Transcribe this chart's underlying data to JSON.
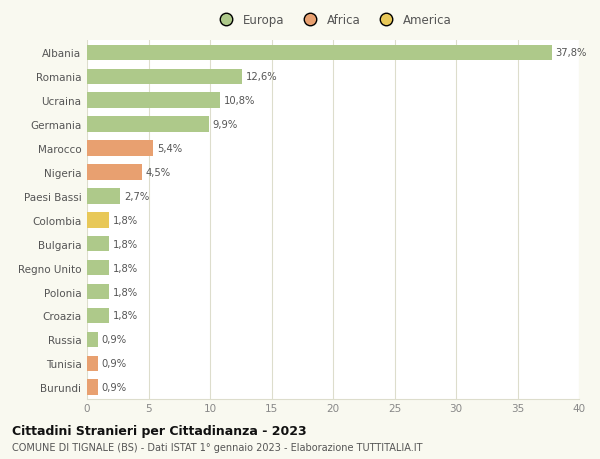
{
  "categories": [
    "Albania",
    "Romania",
    "Ucraina",
    "Germania",
    "Marocco",
    "Nigeria",
    "Paesi Bassi",
    "Colombia",
    "Bulgaria",
    "Regno Unito",
    "Polonia",
    "Croazia",
    "Russia",
    "Tunisia",
    "Burundi"
  ],
  "values": [
    37.8,
    12.6,
    10.8,
    9.9,
    5.4,
    4.5,
    2.7,
    1.8,
    1.8,
    1.8,
    1.8,
    1.8,
    0.9,
    0.9,
    0.9
  ],
  "labels": [
    "37,8%",
    "12,6%",
    "10,8%",
    "9,9%",
    "5,4%",
    "4,5%",
    "2,7%",
    "1,8%",
    "1,8%",
    "1,8%",
    "1,8%",
    "1,8%",
    "0,9%",
    "0,9%",
    "0,9%"
  ],
  "colors": [
    "#aec98a",
    "#aec98a",
    "#aec98a",
    "#aec98a",
    "#e8a070",
    "#e8a070",
    "#aec98a",
    "#e8c858",
    "#aec98a",
    "#aec98a",
    "#aec98a",
    "#aec98a",
    "#aec98a",
    "#e8a070",
    "#e8a070"
  ],
  "legend_labels": [
    "Europa",
    "Africa",
    "America"
  ],
  "legend_colors": [
    "#aec98a",
    "#e8a070",
    "#e8c858"
  ],
  "title": "Cittadini Stranieri per Cittadinanza - 2023",
  "subtitle": "COMUNE DI TIGNALE (BS) - Dati ISTAT 1° gennaio 2023 - Elaborazione TUTTITALIA.IT",
  "xlim": [
    0,
    40
  ],
  "xticks": [
    0,
    5,
    10,
    15,
    20,
    25,
    30,
    35,
    40
  ],
  "background_color": "#f9f9f0",
  "plot_bg": "#ffffff",
  "grid_color": "#ddddcc"
}
